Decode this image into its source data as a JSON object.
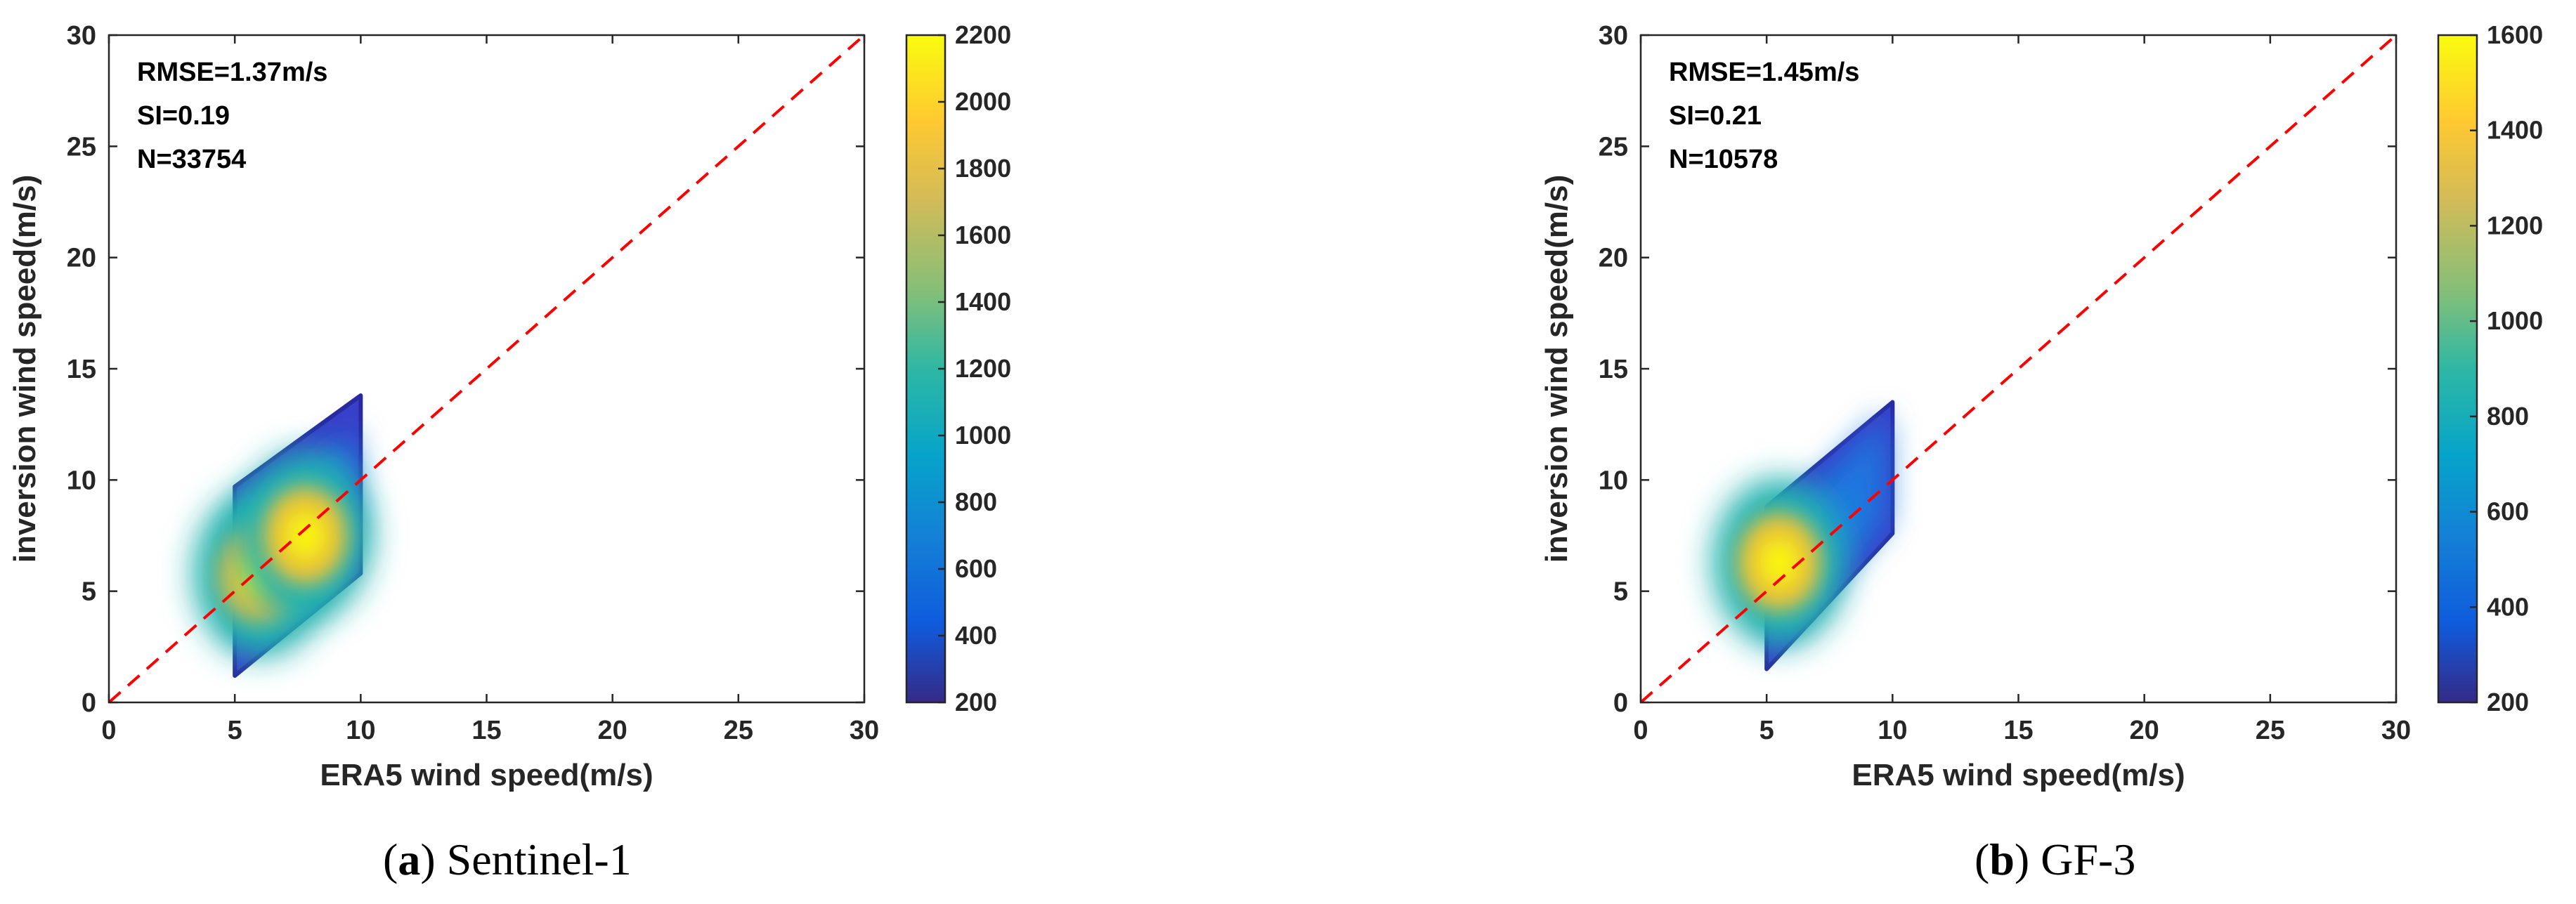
{
  "panels": [
    {
      "caption_tag": "a",
      "caption_text": "Sentinel-1",
      "stats": [
        "RMSE=1.37m/s",
        "SI=0.19",
        "N=33754"
      ]
    },
    {
      "caption_tag": "b",
      "caption_text": "GF-3",
      "stats": [
        "RMSE=1.45m/s",
        "SI=0.21",
        "N=10578"
      ]
    }
  ],
  "chart_data": [
    {
      "type": "scatter",
      "title": "",
      "xlabel": "ERA5 wind speed(m/s)",
      "ylabel": "inversion wind speed(m/s)",
      "xlim": [
        0,
        30
      ],
      "ylim": [
        0,
        30
      ],
      "xticks": [
        0,
        5,
        10,
        15,
        20,
        25,
        30
      ],
      "yticks": [
        0,
        5,
        10,
        15,
        20,
        25,
        30
      ],
      "reference_line": {
        "slope": 1,
        "intercept": 0,
        "style": "dashed",
        "color": "#ff0000"
      },
      "density_region": {
        "x_range": [
          5,
          10
        ],
        "y_range_at_x5": [
          1.2,
          9.7
        ],
        "y_range_at_x10": [
          5.8,
          13.8
        ],
        "density_peaks": [
          {
            "x": 6.0,
            "y": 5.8,
            "density": 1900
          },
          {
            "x": 7.8,
            "y": 7.5,
            "density": 2200
          }
        ]
      },
      "colorbar": {
        "range": [
          200,
          2200
        ],
        "ticks": [
          200,
          400,
          600,
          800,
          1000,
          1200,
          1400,
          1600,
          1800,
          2000,
          2200
        ],
        "colormap": "parula"
      },
      "stats": {
        "RMSE": "1.37m/s",
        "SI": 0.19,
        "N": 33754
      }
    },
    {
      "type": "scatter",
      "title": "",
      "xlabel": "ERA5 wind speed(m/s)",
      "ylabel": "inversion wind speed(m/s)",
      "xlim": [
        0,
        30
      ],
      "ylim": [
        0,
        30
      ],
      "xticks": [
        0,
        5,
        10,
        15,
        20,
        25,
        30
      ],
      "yticks": [
        0,
        5,
        10,
        15,
        20,
        25,
        30
      ],
      "reference_line": {
        "slope": 1,
        "intercept": 0,
        "style": "dashed",
        "color": "#ff0000"
      },
      "density_region": {
        "x_range": [
          5,
          10
        ],
        "y_range_at_x5": [
          1.5,
          8.8
        ],
        "y_range_at_x10": [
          7.6,
          13.5
        ],
        "density_peaks": [
          {
            "x": 5.5,
            "y": 6.3,
            "density": 1600
          }
        ]
      },
      "colorbar": {
        "range": [
          200,
          1600
        ],
        "ticks": [
          200,
          400,
          600,
          800,
          1000,
          1200,
          1400,
          1600
        ],
        "colormap": "parula"
      },
      "stats": {
        "RMSE": "1.45m/s",
        "SI": 0.21,
        "N": 10578
      }
    }
  ]
}
